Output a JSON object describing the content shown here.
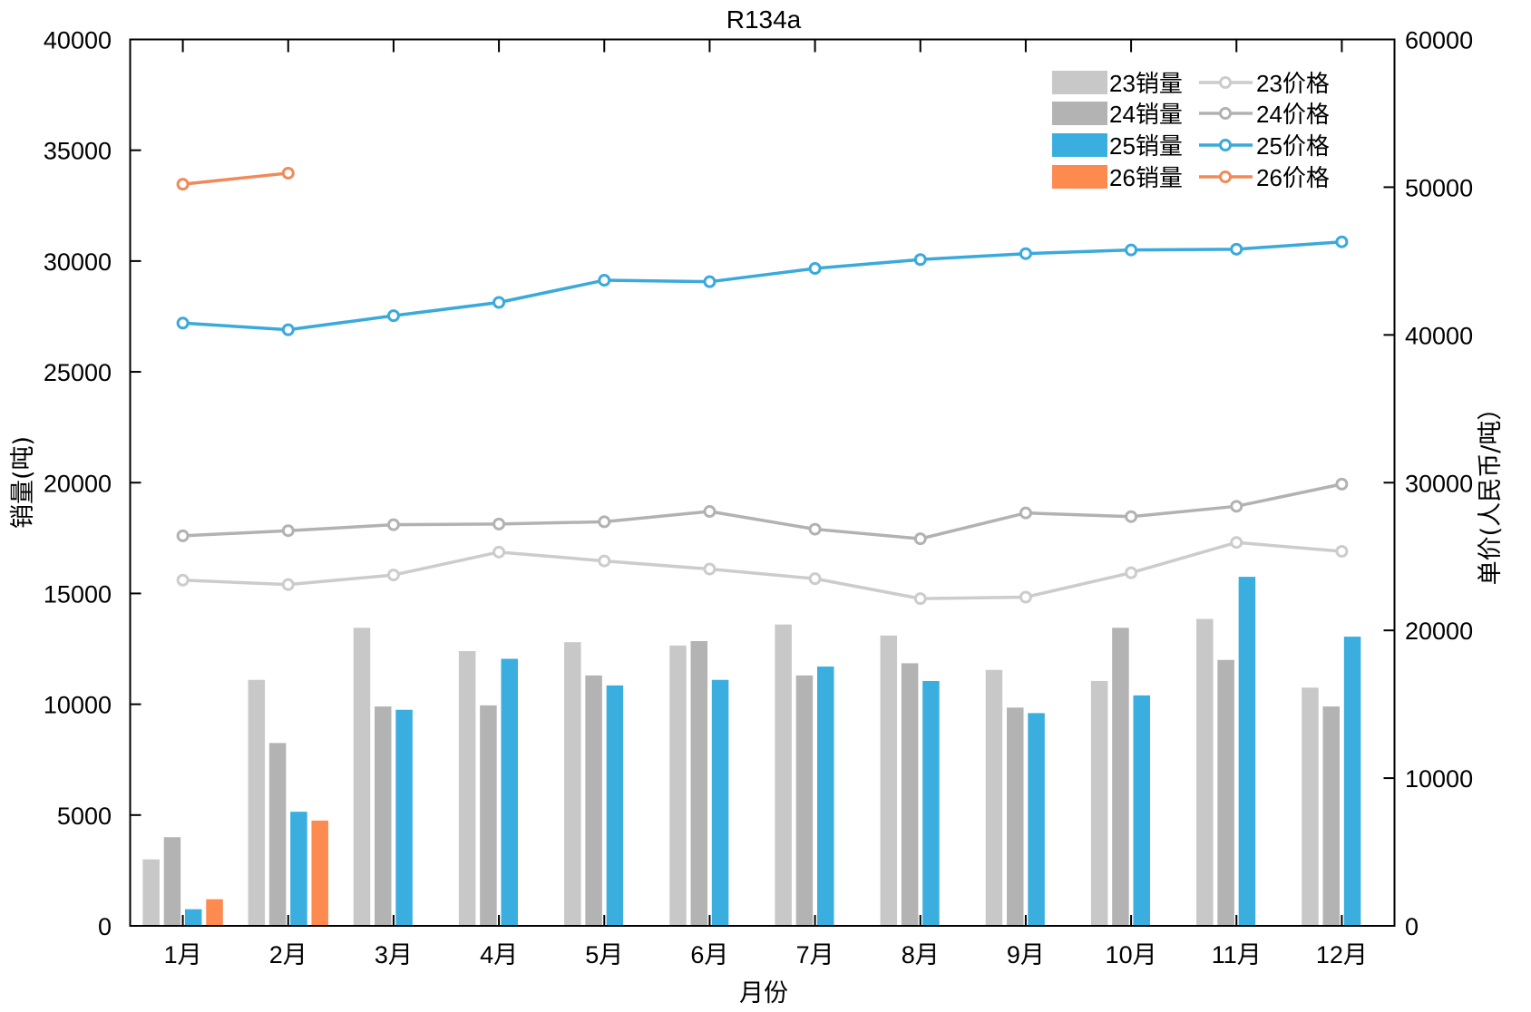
{
  "chart_data": {
    "type": "bar+line",
    "title": "R134a",
    "xlabel": "月份",
    "ylabel": "销量(吨)",
    "y2label": "单价(人民币/吨）",
    "categories": [
      "1月",
      "2月",
      "3月",
      "4月",
      "5月",
      "6月",
      "7月",
      "8月",
      "9月",
      "10月",
      "11月",
      "12月"
    ],
    "ylim": [
      0,
      40000
    ],
    "y2lim": [
      0,
      60000
    ],
    "yticks": [
      0,
      5000,
      10000,
      15000,
      20000,
      25000,
      30000,
      35000,
      40000
    ],
    "y2ticks": [
      0,
      10000,
      20000,
      30000,
      40000,
      50000,
      60000
    ],
    "grid": false,
    "legend_position": "top-right",
    "bar_series": [
      {
        "name": "23销量",
        "color": "#c8c8c8",
        "axis": "left",
        "values": [
          3000,
          11100,
          13450,
          12400,
          12800,
          12650,
          13600,
          13100,
          11550,
          11050,
          13850,
          10750
        ]
      },
      {
        "name": "24销量",
        "color": "#b3b3b3",
        "axis": "left",
        "values": [
          4000,
          8250,
          9900,
          9950,
          11300,
          12850,
          11300,
          11850,
          9850,
          13450,
          12000,
          9900
        ]
      },
      {
        "name": "25销量",
        "color": "#3aaede",
        "axis": "left",
        "values": [
          750,
          5150,
          9750,
          12050,
          10850,
          11100,
          11700,
          11050,
          9600,
          10400,
          15750,
          13050
        ]
      },
      {
        "name": "26销量",
        "color": "#fd8a4f",
        "axis": "left",
        "values": [
          1200,
          4750,
          null,
          null,
          null,
          null,
          null,
          null,
          null,
          null,
          null,
          null
        ]
      }
    ],
    "line_series": [
      {
        "name": "23价格",
        "color": "#cccccc",
        "axis": "right",
        "marker": "circle",
        "values": [
          23400,
          23100,
          23750,
          25300,
          24700,
          24150,
          23500,
          22150,
          22250,
          23900,
          25950,
          25350
        ]
      },
      {
        "name": "24价格",
        "color": "#b2b2b2",
        "axis": "right",
        "marker": "circle",
        "values": [
          26400,
          26750,
          27150,
          27200,
          27350,
          28050,
          26850,
          26200,
          27950,
          27700,
          28400,
          29900
        ]
      },
      {
        "name": "25价格",
        "color": "#3aa9db",
        "axis": "right",
        "marker": "circle",
        "values": [
          40800,
          40350,
          41300,
          42200,
          43700,
          43600,
          44500,
          45100,
          45500,
          45750,
          45800,
          46300
        ]
      },
      {
        "name": "26价格",
        "color": "#f08a58",
        "axis": "right",
        "marker": "circle",
        "values": [
          50200,
          50950,
          null,
          null,
          null,
          null,
          null,
          null,
          null,
          null,
          null,
          null
        ]
      }
    ]
  }
}
